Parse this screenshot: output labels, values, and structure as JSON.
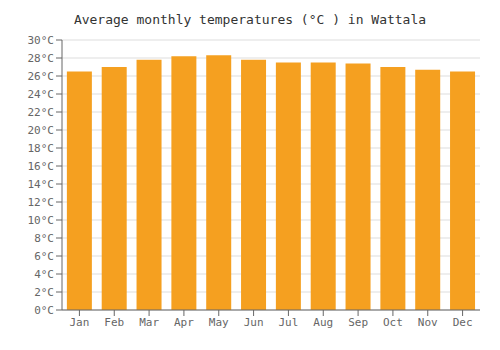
{
  "chart_data": {
    "type": "bar",
    "title": "Average monthly temperatures (°C ) in Wattala",
    "categories": [
      "Jan",
      "Feb",
      "Mar",
      "Apr",
      "May",
      "Jun",
      "Jul",
      "Aug",
      "Sep",
      "Oct",
      "Nov",
      "Dec"
    ],
    "values": [
      26.5,
      27.0,
      27.8,
      28.2,
      28.3,
      27.8,
      27.5,
      27.5,
      27.4,
      27.0,
      26.7,
      26.5
    ],
    "color": "#F5A020",
    "ylim": [
      0,
      30
    ],
    "yticks": [
      {
        "value": 0,
        "label": "0°C"
      },
      {
        "value": 2,
        "label": "2°C"
      },
      {
        "value": 4,
        "label": "4°C"
      },
      {
        "value": 6,
        "label": "6°C"
      },
      {
        "value": 8,
        "label": "8°C"
      },
      {
        "value": 10,
        "label": "10°C"
      },
      {
        "value": 12,
        "label": "12°C"
      },
      {
        "value": 14,
        "label": "14°C"
      },
      {
        "value": 16,
        "label": "16°C"
      },
      {
        "value": 18,
        "label": "18°C"
      },
      {
        "value": 20,
        "label": "20°C"
      },
      {
        "value": 22,
        "label": "22°C"
      },
      {
        "value": 24,
        "label": "24°C"
      },
      {
        "value": 26,
        "label": "26°C"
      },
      {
        "value": 28,
        "label": "28°C"
      },
      {
        "value": 30,
        "label": "30°C"
      }
    ],
    "grid": true
  }
}
